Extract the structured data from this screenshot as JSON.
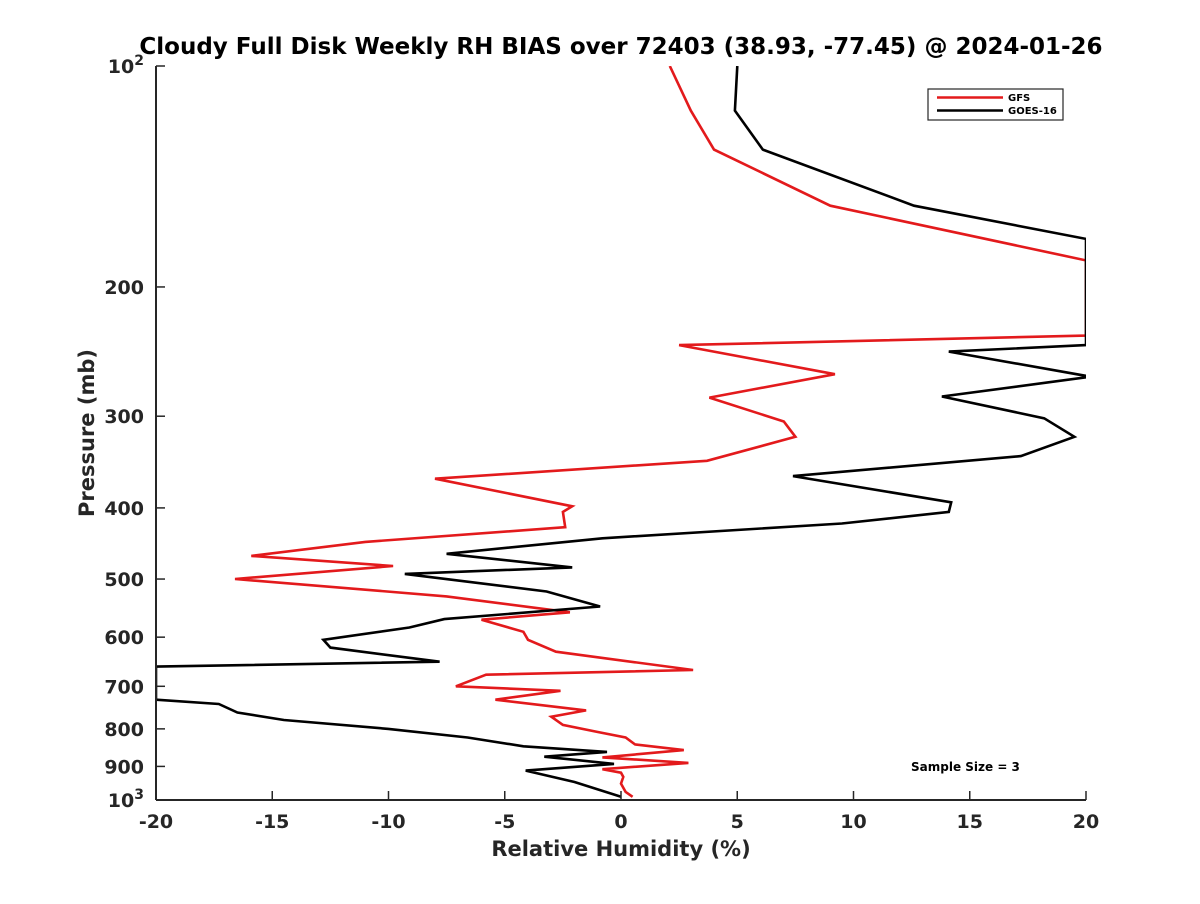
{
  "chart_data": {
    "type": "line",
    "title": "Cloudy Full Disk Weekly RH BIAS over 72403 (38.93, -77.45) @ 2024-01-26",
    "xlabel": "Relative Humidity (%)",
    "ylabel": "Pressure (mb)",
    "xlim": [
      -20,
      20
    ],
    "ylim": [
      100,
      1000
    ],
    "yscale": "log",
    "y_reversed": true,
    "grid": false,
    "legend_position": "top-right",
    "x_ticks": [
      {
        "value": -20,
        "label": "-20"
      },
      {
        "value": -15,
        "label": "-15"
      },
      {
        "value": -10,
        "label": "-10"
      },
      {
        "value": -5,
        "label": "-5"
      },
      {
        "value": 0,
        "label": "0"
      },
      {
        "value": 5,
        "label": "5"
      },
      {
        "value": 10,
        "label": "10"
      },
      {
        "value": 15,
        "label": "15"
      },
      {
        "value": 20,
        "label": "20"
      }
    ],
    "y_ticks": [
      {
        "value": 100,
        "base": "10",
        "exp": "2"
      },
      {
        "value": 200,
        "label": "200"
      },
      {
        "value": 300,
        "label": "300"
      },
      {
        "value": 400,
        "label": "400"
      },
      {
        "value": 500,
        "label": "500"
      },
      {
        "value": 600,
        "label": "600"
      },
      {
        "value": 700,
        "label": "700"
      },
      {
        "value": 800,
        "label": "800"
      },
      {
        "value": 900,
        "label": "900"
      },
      {
        "value": 1000,
        "base": "10",
        "exp": "3"
      }
    ],
    "annotation": "Sample Size = 3",
    "series": [
      {
        "name": "GFS",
        "color": "#e31a1c",
        "points": [
          [
            2.1,
            100
          ],
          [
            3.0,
            115
          ],
          [
            4.0,
            130
          ],
          [
            9.0,
            155
          ],
          [
            20.0,
            184
          ],
          [
            20.0,
            233
          ],
          [
            2.5,
            240
          ],
          [
            9.2,
            263
          ],
          [
            3.8,
            283
          ],
          [
            7.0,
            305
          ],
          [
            7.5,
            320
          ],
          [
            3.7,
            345
          ],
          [
            -8.0,
            365
          ],
          [
            -2.1,
            398
          ],
          [
            -2.5,
            405
          ],
          [
            -2.4,
            425
          ],
          [
            -11.0,
            445
          ],
          [
            -15.9,
            465
          ],
          [
            -9.8,
            480
          ],
          [
            -16.6,
            500
          ],
          [
            -7.5,
            528
          ],
          [
            -2.2,
            555
          ],
          [
            -6.0,
            568
          ],
          [
            -4.2,
            590
          ],
          [
            -4.0,
            605
          ],
          [
            -2.8,
            628
          ],
          [
            3.1,
            665
          ],
          [
            -5.8,
            675
          ],
          [
            -7.1,
            700
          ],
          [
            -2.6,
            710
          ],
          [
            -5.4,
            730
          ],
          [
            -1.5,
            755
          ],
          [
            -3.0,
            770
          ],
          [
            -2.5,
            790
          ],
          [
            -1.0,
            808
          ],
          [
            0.2,
            822
          ],
          [
            0.6,
            840
          ],
          [
            2.7,
            855
          ],
          [
            -0.8,
            875
          ],
          [
            2.9,
            890
          ],
          [
            -0.8,
            908
          ],
          [
            0.0,
            918
          ],
          [
            0.1,
            930
          ],
          [
            0.0,
            950
          ],
          [
            0.2,
            975
          ],
          [
            0.5,
            990
          ]
        ]
      },
      {
        "name": "GOES-16",
        "color": "#000000",
        "points": [
          [
            5.0,
            100
          ],
          [
            4.9,
            115
          ],
          [
            6.1,
            130
          ],
          [
            12.6,
            155
          ],
          [
            20.0,
            172
          ],
          [
            20.0,
            240
          ],
          [
            14.1,
            245
          ],
          [
            20.2,
            265
          ],
          [
            13.8,
            282
          ],
          [
            18.2,
            302
          ],
          [
            19.5,
            320
          ],
          [
            17.2,
            340
          ],
          [
            7.4,
            362
          ],
          [
            14.2,
            393
          ],
          [
            14.1,
            405
          ],
          [
            9.5,
            420
          ],
          [
            -0.8,
            440
          ],
          [
            -7.5,
            462
          ],
          [
            -2.1,
            482
          ],
          [
            -9.3,
            492
          ],
          [
            -3.2,
            520
          ],
          [
            -0.9,
            545
          ],
          [
            -7.6,
            567
          ],
          [
            -9.1,
            582
          ],
          [
            -12.8,
            605
          ],
          [
            -12.5,
            620
          ],
          [
            -7.8,
            648
          ],
          [
            -20.0,
            658
          ],
          [
            -20.0,
            730
          ],
          [
            -17.3,
            740
          ],
          [
            -16.5,
            760
          ],
          [
            -14.5,
            778
          ],
          [
            -10.0,
            800
          ],
          [
            -6.6,
            822
          ],
          [
            -4.2,
            845
          ],
          [
            -0.6,
            860
          ],
          [
            -3.3,
            873
          ],
          [
            -0.3,
            893
          ],
          [
            -4.1,
            912
          ],
          [
            -2.0,
            945
          ],
          [
            0.0,
            990
          ]
        ]
      }
    ]
  }
}
